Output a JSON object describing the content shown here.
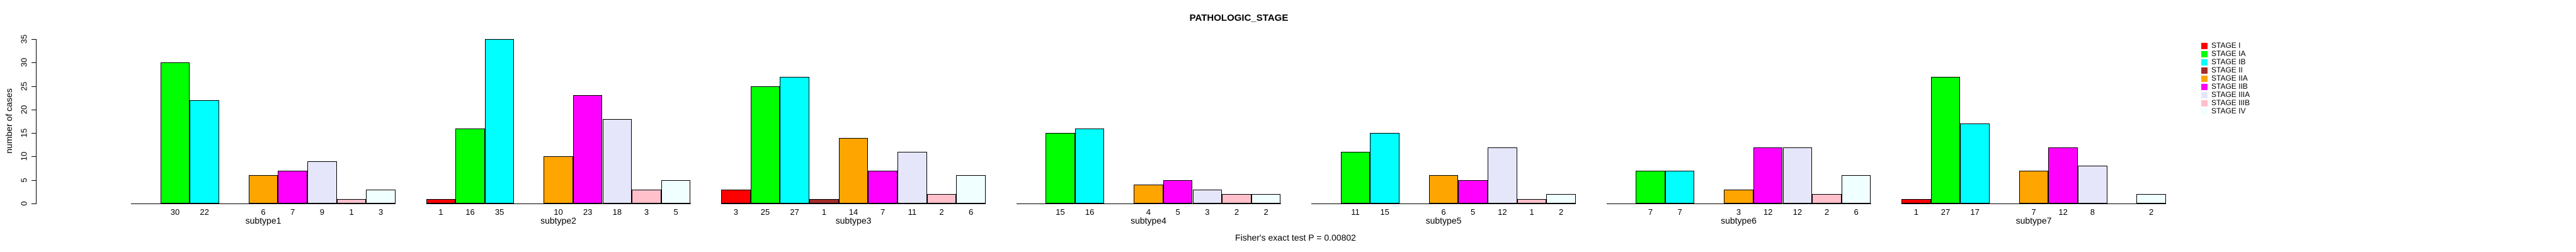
{
  "title": "PATHOLOGIC_STAGE",
  "annotation": "Fisher's exact test P = 0.00802",
  "y_axis": {
    "label": "number of cases",
    "ticks": [
      0,
      5,
      10,
      15,
      20,
      25,
      30,
      35
    ]
  },
  "legend": {
    "position": "right",
    "items": [
      {
        "label": "STAGE I",
        "color": "#FF0000"
      },
      {
        "label": "STAGE IA",
        "color": "#00FF00"
      },
      {
        "label": "STAGE IB",
        "color": "#00FFFF"
      },
      {
        "label": "STAGE II",
        "color": "#A52A2A"
      },
      {
        "label": "STAGE IIA",
        "color": "#FFA500"
      },
      {
        "label": "STAGE IIB",
        "color": "#FF00FF"
      },
      {
        "label": "STAGE IIIA",
        "color": "#E6E6FA"
      },
      {
        "label": "STAGE IIIB",
        "color": "#FFC0CB"
      },
      {
        "label": "STAGE IV",
        "color": "#F0FFFF"
      }
    ]
  },
  "chart_data": {
    "type": "bar",
    "title": "PATHOLOGIC_STAGE",
    "xlabel": "",
    "ylabel": "number of cases",
    "ylim": [
      0,
      35
    ],
    "grid": false,
    "legend_position": "right",
    "bar_value_labels": true,
    "annotation": "Fisher's exact test P = 0.00802",
    "categories": [
      "subtype1",
      "subtype2",
      "subtype3",
      "subtype4",
      "subtype5",
      "subtype6",
      "subtype7"
    ],
    "series": [
      {
        "name": "STAGE I",
        "color": "#FF0000",
        "values": [
          0,
          1,
          3,
          0,
          0,
          0,
          1
        ]
      },
      {
        "name": "STAGE IA",
        "color": "#00FF00",
        "values": [
          30,
          16,
          25,
          15,
          11,
          7,
          27
        ]
      },
      {
        "name": "STAGE IB",
        "color": "#00FFFF",
        "values": [
          22,
          35,
          27,
          16,
          15,
          7,
          17
        ]
      },
      {
        "name": "STAGE II",
        "color": "#A52A2A",
        "values": [
          0,
          0,
          1,
          0,
          0,
          0,
          0
        ]
      },
      {
        "name": "STAGE IIA",
        "color": "#FFA500",
        "values": [
          6,
          10,
          14,
          4,
          6,
          3,
          7
        ]
      },
      {
        "name": "STAGE IIB",
        "color": "#FF00FF",
        "values": [
          7,
          23,
          7,
          5,
          5,
          12,
          12
        ]
      },
      {
        "name": "STAGE IIIA",
        "color": "#E6E6FA",
        "values": [
          9,
          18,
          11,
          3,
          12,
          12,
          8
        ]
      },
      {
        "name": "STAGE IIIB",
        "color": "#FFC0CB",
        "values": [
          1,
          3,
          2,
          2,
          1,
          2,
          0
        ]
      },
      {
        "name": "STAGE IV",
        "color": "#F0FFFF",
        "values": [
          3,
          5,
          6,
          2,
          2,
          6,
          2
        ]
      }
    ]
  }
}
